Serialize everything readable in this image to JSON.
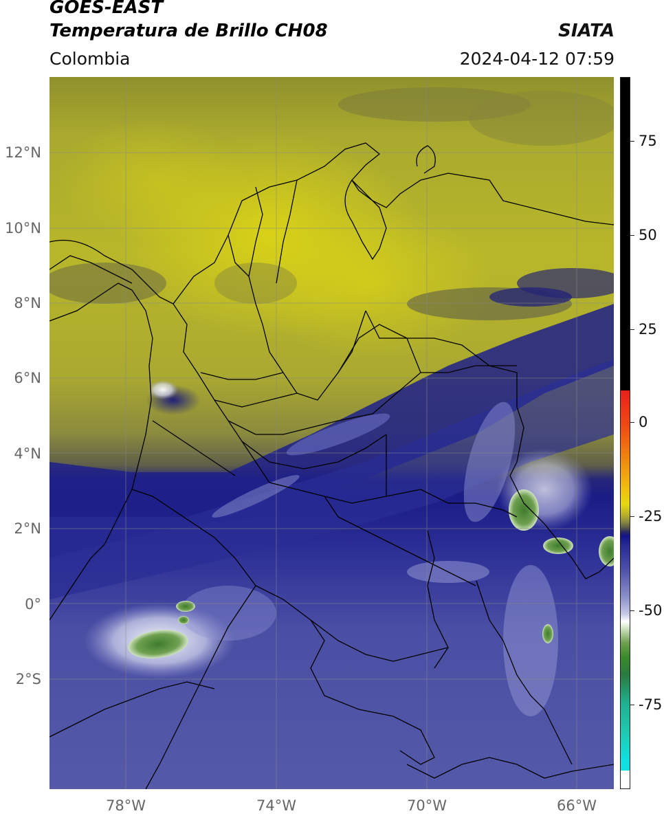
{
  "header": {
    "title_line1": "GOES-EAST",
    "title_line2": "Temperatura de Brillo CH08",
    "brand": "SIATA",
    "region": "Colombia",
    "datetime": "2024-04-12 07:59"
  },
  "axes": {
    "lat_labels": [
      "12°N",
      "10°N",
      "8°N",
      "6°N",
      "4°N",
      "2°N",
      "0°",
      "2°S"
    ],
    "lon_labels": [
      "78°W",
      "74°W",
      "70°W",
      "66°W"
    ]
  },
  "colorbar": {
    "ticks": [
      "75",
      "50",
      "25",
      "0",
      "-25",
      "-50",
      "-75"
    ],
    "colors": {
      "black": "#000000",
      "red": "#e8201a",
      "orange": "#f08c10",
      "yellow": "#e6d810",
      "olive": "#a9ab2f",
      "gray": "#5a5a48",
      "navy": "#14148c",
      "blue": "#4a4ea8",
      "lavender": "#a6aad6",
      "white": "#ffffff",
      "green": "#3a8a2a",
      "teal": "#20b090",
      "cyan": "#10e0e0"
    }
  },
  "map_colors": {
    "cold_cloud_green": "#4f8a3a",
    "high_moisture_navy": "#1d1f83",
    "dry_yellow": "#b5b22a"
  }
}
